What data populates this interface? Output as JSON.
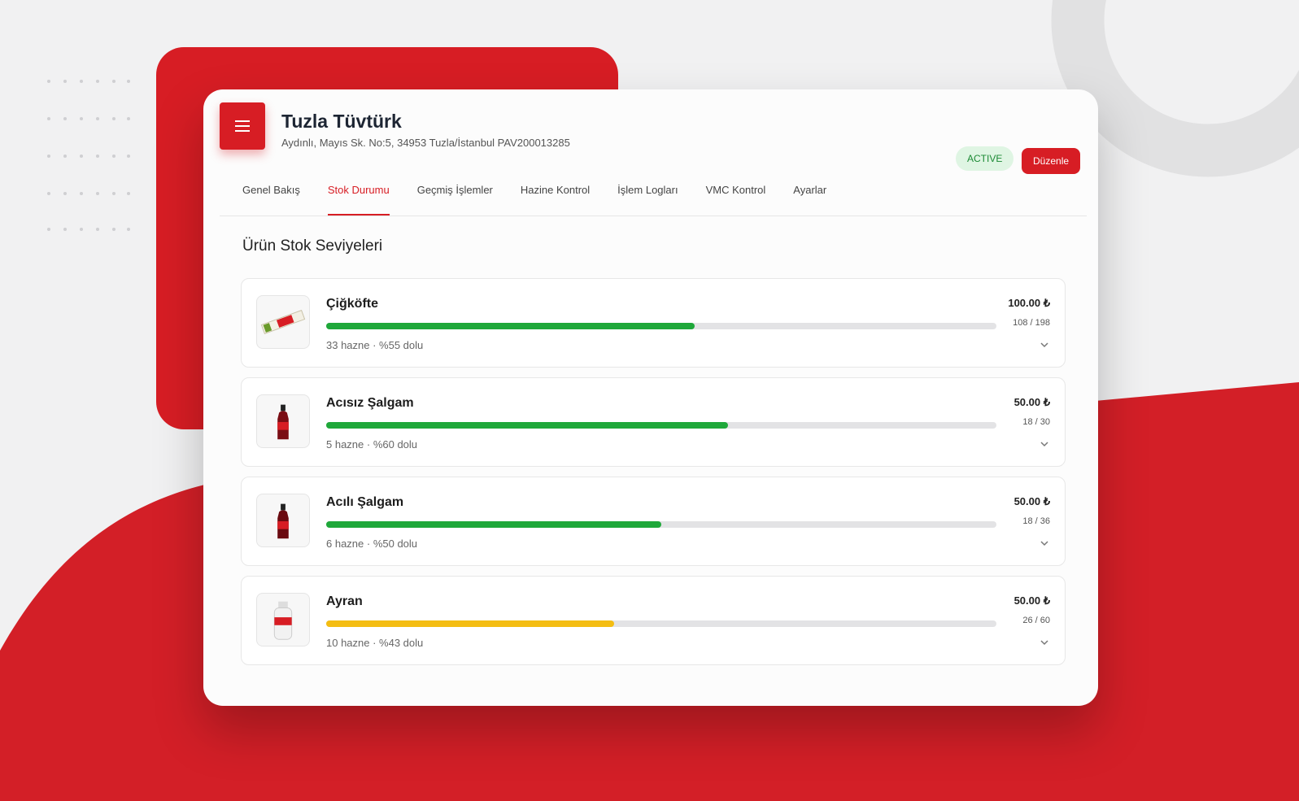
{
  "header": {
    "title": "Tuzla Tüvtürk",
    "address": "Aydınlı, Mayıs Sk. No:5, 34953 Tuzla/İstanbul PAV200013285",
    "status": "ACTIVE",
    "edit_button": "Düzenle"
  },
  "tabs": {
    "items": [
      "Genel Bakış",
      "Stok Durumu",
      "Geçmiş İşlemler",
      "Hazine Kontrol",
      "İşlem Logları",
      "VMC Kontrol",
      "Ayarlar"
    ],
    "active": 1
  },
  "section": {
    "title": "Ürün Stok Seviyeleri"
  },
  "products": [
    {
      "name": "Çiğköfte",
      "price": "100.00 ₺",
      "stock": "108 / 198",
      "meta": "33 hazne · %55 dolu",
      "level": 55,
      "color": "#1fa83a"
    },
    {
      "name": "Acısız Şalgam",
      "price": "50.00 ₺",
      "stock": "18 / 30",
      "meta": "5 hazne · %60 dolu",
      "level": 60,
      "color": "#1fa83a"
    },
    {
      "name": "Acılı Şalgam",
      "price": "50.00 ₺",
      "stock": "18 / 36",
      "meta": "6 hazne · %50 dolu",
      "level": 50,
      "color": "#1fa83a"
    },
    {
      "name": "Ayran",
      "price": "50.00 ₺",
      "stock": "26 / 60",
      "meta": "10 hazne · %43 dolu",
      "level": 43,
      "color": "#f4bd12"
    }
  ]
}
